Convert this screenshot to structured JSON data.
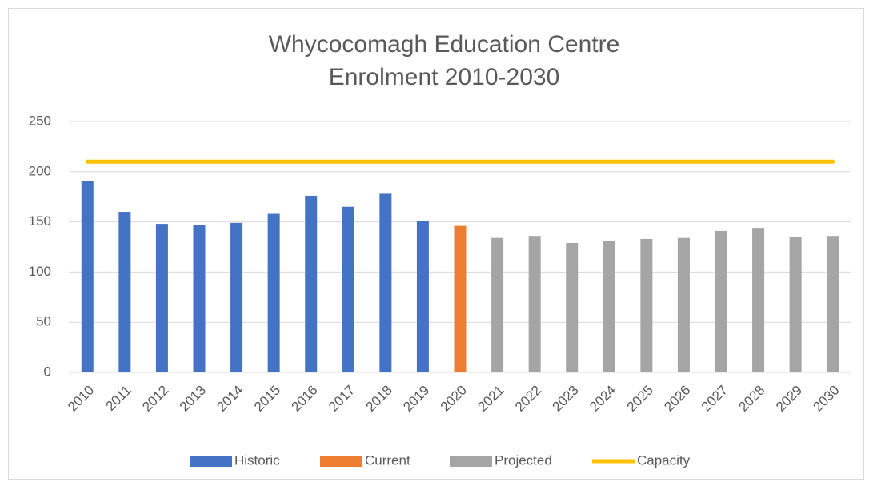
{
  "chart_data": {
    "type": "bar",
    "title": [
      "Whycocomagh Education Centre",
      "Enrolment 2010-2030"
    ],
    "categories": [
      "2010",
      "2011",
      "2012",
      "2013",
      "2014",
      "2015",
      "2016",
      "2017",
      "2018",
      "2019",
      "2020",
      "2021",
      "2022",
      "2023",
      "2024",
      "2025",
      "2026",
      "2027",
      "2028",
      "2029",
      "2030"
    ],
    "series": [
      {
        "name": "Historic",
        "color": "#4472c4",
        "values": [
          191,
          160,
          148,
          147,
          149,
          158,
          176,
          165,
          178,
          151,
          null,
          null,
          null,
          null,
          null,
          null,
          null,
          null,
          null,
          null,
          null
        ]
      },
      {
        "name": "Current",
        "color": "#ed7d31",
        "values": [
          null,
          null,
          null,
          null,
          null,
          null,
          null,
          null,
          null,
          null,
          146,
          null,
          null,
          null,
          null,
          null,
          null,
          null,
          null,
          null,
          null
        ]
      },
      {
        "name": "Projected",
        "color": "#a5a5a5",
        "values": [
          null,
          null,
          null,
          null,
          null,
          null,
          null,
          null,
          null,
          null,
          null,
          134,
          136,
          129,
          131,
          133,
          134,
          141,
          144,
          135,
          136
        ]
      },
      {
        "name": "Capacity",
        "color": "#ffc000",
        "type": "line",
        "values": [
          210,
          210,
          210,
          210,
          210,
          210,
          210,
          210,
          210,
          210,
          210,
          210,
          210,
          210,
          210,
          210,
          210,
          210,
          210,
          210,
          210
        ]
      }
    ],
    "ylim": [
      0,
      250
    ],
    "yticks": [
      0,
      50,
      100,
      150,
      200,
      250
    ],
    "grid": true,
    "legend": "bottom"
  }
}
